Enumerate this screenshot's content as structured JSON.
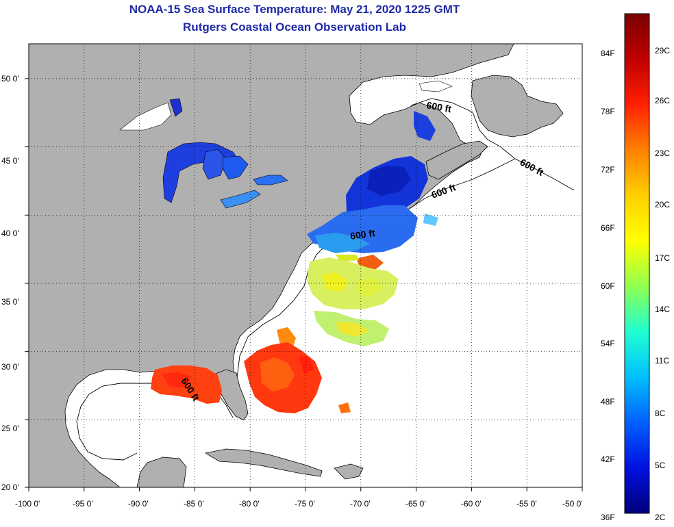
{
  "header": {
    "title": "NOAA-15 Sea Surface Temperature:  May 21, 2020 1225 GMT",
    "subtitle": "Rutgers Coastal Ocean Observation Lab"
  },
  "map": {
    "lon_range": [
      -100,
      -50
    ],
    "lat_range": [
      20,
      52.5
    ],
    "lon_ticks": [
      "-100 0'",
      "-95 0'",
      "-90 0'",
      "-85 0'",
      "-80 0'",
      "-75 0'",
      "-70 0'",
      "-65 0'",
      "-60 0'",
      "-55 0'",
      "-50 0'"
    ],
    "lat_ticks": [
      "50 0'",
      "45 0'",
      "40 0'",
      "35 0'",
      "30 0'",
      "25 0'",
      "20 0'"
    ],
    "contour_label": "600 ft",
    "land_color": "#b0b0b0",
    "ocean_color": "#ffffff"
  },
  "colorbar": {
    "fahrenheit_labels": [
      "84F",
      "78F",
      "72F",
      "66F",
      "60F",
      "54F",
      "48F",
      "42F",
      "36F"
    ],
    "celsius_labels": [
      "29C",
      "26C",
      "23C",
      "20C",
      "17C",
      "14C",
      "11C",
      "8C",
      "5C",
      "2C"
    ],
    "gradient": [
      "#7a0000",
      "#c00000",
      "#ff2000",
      "#ff8000",
      "#ffd000",
      "#ffff00",
      "#90ff50",
      "#20ffd0",
      "#00c0ff",
      "#0060ff",
      "#0010e0",
      "#00007a"
    ]
  }
}
